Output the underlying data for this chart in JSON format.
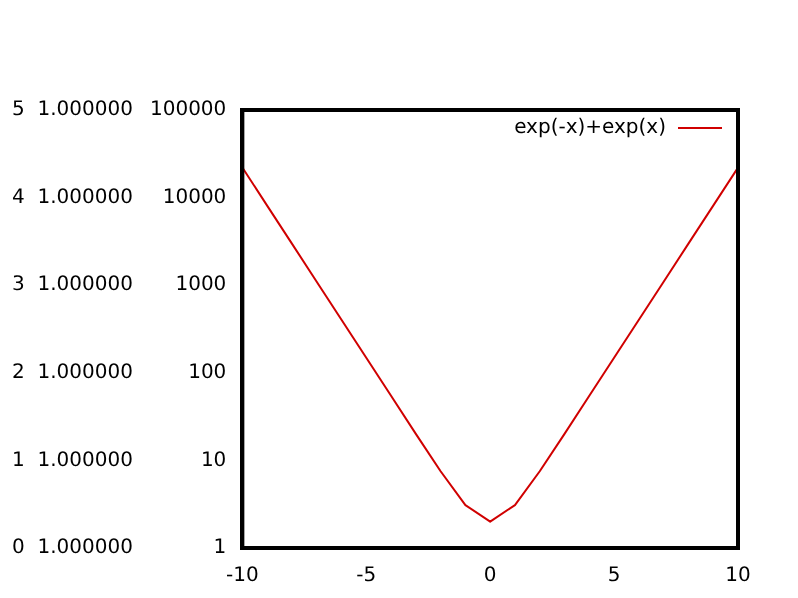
{
  "chart_data": {
    "type": "line",
    "log": "y",
    "grid": false,
    "legend": "top right",
    "marker": "none",
    "line_style": "solid",
    "x": [
      -10,
      -9,
      -8,
      -7,
      -6,
      -5,
      -4,
      -3,
      -2,
      -1,
      0,
      1,
      2,
      3,
      4,
      5,
      6,
      7,
      8,
      9,
      10
    ],
    "series": [
      {
        "name": "exp(-x)+exp(x)",
        "color": "#d00000",
        "values": [
          22026,
          8103,
          2981,
          1097,
          403.4,
          148.4,
          54.6,
          20.1,
          7.52,
          3.09,
          2,
          3.09,
          7.52,
          20.1,
          54.6,
          148.4,
          403.4,
          1097,
          2981,
          8103,
          22026
        ]
      }
    ],
    "xlim": [
      -10,
      10
    ],
    "xticks": [
      -10,
      -5,
      0,
      5,
      10
    ],
    "ylim": [
      1,
      100000
    ],
    "yticks": [
      1,
      10,
      100,
      1000,
      10000,
      100000
    ],
    "annotations": [
      "5  1.000000",
      "4  1.000000",
      "3  1.000000",
      "2  1.000000",
      "1  1.000000",
      "0  1.000000"
    ]
  }
}
